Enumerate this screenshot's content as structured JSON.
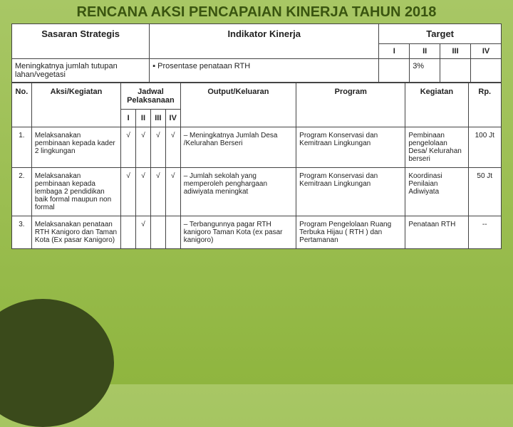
{
  "title": "RENCANA AKSI PENCAPAIAN KINERJA TAHUN 2018",
  "top": {
    "h1": "Sasaran Strategis",
    "h2": "Indikator Kinerja",
    "h3": "Target",
    "q1": "I",
    "q2": "II",
    "q3": "III",
    "q4": "IV",
    "sasaran": "Meningkatnya jumlah tutupan lahan/vegetasi",
    "indikator": "▪ Prosentase penataan RTH",
    "t2": "3%"
  },
  "bot": {
    "h_no": "No.",
    "h_aksi": "Aksi/Kegiatan",
    "h_jadwal": "Jadwal Pelaksanaan",
    "h_out": "Output/Keluaran",
    "h_prog": "Program",
    "h_keg": "Kegiatan",
    "h_rp": "Rp.",
    "q1": "I",
    "q2": "II",
    "q3": "III",
    "q4": "IV",
    "rows": [
      {
        "no": "1.",
        "aksi": "Melaksanakan pembinaan kepada kader 2 lingkungan",
        "j": [
          "√",
          "√",
          "√",
          "√"
        ],
        "out": "– Meningkatnya Jumlah Desa /Kelurahan Berseri",
        "prog": "Program Konservasi dan Kemitraan Lingkungan",
        "keg": "Pembinaan pengelolaan Desa/ Kelurahan berseri",
        "rp": "100 Jt"
      },
      {
        "no": "2.",
        "aksi": "Melaksanakan pembinaan kepada lembaga 2 pendidikan baik formal maupun non formal",
        "j": [
          "√",
          "√",
          "√",
          "√"
        ],
        "out": "– Jumlah sekolah yang memperoleh penghargaan adiwiyata meningkat",
        "prog": "Program Konservasi dan Kemitraan Lingkungan",
        "keg": "Koordinasi Penilaian Adiwiyata",
        "rp": "50 Jt"
      },
      {
        "no": "3.",
        "aksi": "Melaksanakan penataan RTH Kanigoro dan Taman Kota (Ex pasar Kanigoro)",
        "j": [
          "",
          "√",
          "",
          ""
        ],
        "out": "– Terbangunnya pagar RTH kanigoro Taman Kota (ex pasar kanigoro)",
        "prog": "Program Pengelolaan Ruang Terbuka Hijau ( RTH ) dan Pertamanan",
        "keg": "Penataan RTH",
        "rp": "--"
      }
    ]
  }
}
